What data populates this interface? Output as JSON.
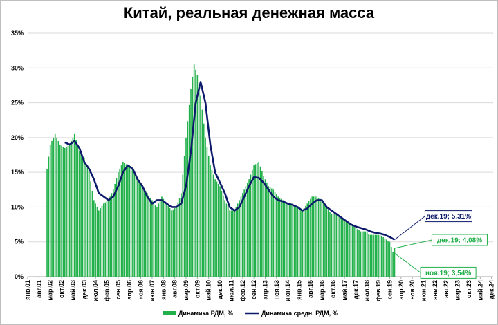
{
  "chart_data": {
    "type": "bar",
    "title": "Китай, реальная денежная масса",
    "xlabel": "",
    "ylabel": "",
    "ylim": [
      0,
      35
    ],
    "y_ticks": [
      "0%",
      "5%",
      "10%",
      "15%",
      "20%",
      "25%",
      "30%",
      "35%"
    ],
    "x_ticks": [
      "янв.01",
      "авг.01",
      "мар.02",
      "окт.02",
      "май.03",
      "дек.03",
      "июл.04",
      "фев.05",
      "сен.05",
      "апр.06",
      "ноя.06",
      "июн.07",
      "янв.08",
      "авг.08",
      "мар.09",
      "окт.09",
      "май.10",
      "дек.10",
      "июл.11",
      "фев.12",
      "сен.12",
      "апр.13",
      "ноя.13",
      "июн.14",
      "янв.15",
      "авг.15",
      "мар.16",
      "окт.16",
      "май.17",
      "дек.17",
      "июл.18",
      "фев.19",
      "сен.19",
      "апр.20",
      "ноя.20",
      "июн.21",
      "янв.22",
      "авг.22",
      "мар.23",
      "окт.23",
      "май.24",
      "дек.24"
    ],
    "grid": true,
    "legend_position": "bottom",
    "colors": {
      "bars": "#22b04a",
      "line": "#0d1a6b",
      "green_annotation": "#22b04a",
      "navy_annotation": "#0d1a6b"
    },
    "series": [
      {
        "name": "Динамика РДМ, %",
        "type": "bar",
        "points": [
          [
            "2002-01",
            15.5
          ],
          [
            "2002-03",
            19.0
          ],
          [
            "2002-06",
            20.5
          ],
          [
            "2002-09",
            19.0
          ],
          [
            "2002-12",
            18.5
          ],
          [
            "2003-03",
            19.0
          ],
          [
            "2003-06",
            20.5
          ],
          [
            "2003-09",
            18.0
          ],
          [
            "2003-12",
            17.0
          ],
          [
            "2004-03",
            15.0
          ],
          [
            "2004-06",
            11.0
          ],
          [
            "2004-09",
            9.5
          ],
          [
            "2004-12",
            10.5
          ],
          [
            "2005-03",
            11.0
          ],
          [
            "2005-06",
            12.5
          ],
          [
            "2005-09",
            15.0
          ],
          [
            "2005-12",
            16.5
          ],
          [
            "2006-03",
            16.0
          ],
          [
            "2006-06",
            15.5
          ],
          [
            "2006-09",
            14.0
          ],
          [
            "2006-12",
            13.0
          ],
          [
            "2007-03",
            12.0
          ],
          [
            "2007-06",
            11.0
          ],
          [
            "2007-09",
            10.0
          ],
          [
            "2007-12",
            11.5
          ],
          [
            "2008-03",
            10.5
          ],
          [
            "2008-06",
            9.5
          ],
          [
            "2008-09",
            10.0
          ],
          [
            "2008-12",
            12.0
          ],
          [
            "2009-03",
            20.0
          ],
          [
            "2009-06",
            27.0
          ],
          [
            "2009-08",
            30.5
          ],
          [
            "2009-10",
            29.0
          ],
          [
            "2009-12",
            26.0
          ],
          [
            "2010-03",
            20.0
          ],
          [
            "2010-06",
            16.0
          ],
          [
            "2010-09",
            14.0
          ],
          [
            "2010-12",
            13.0
          ],
          [
            "2011-03",
            11.0
          ],
          [
            "2011-06",
            9.5
          ],
          [
            "2011-09",
            9.5
          ],
          [
            "2011-12",
            11.0
          ],
          [
            "2012-03",
            12.5
          ],
          [
            "2012-06",
            14.0
          ],
          [
            "2012-09",
            16.0
          ],
          [
            "2012-12",
            16.5
          ],
          [
            "2013-03",
            14.5
          ],
          [
            "2013-06",
            13.0
          ],
          [
            "2013-09",
            12.5
          ],
          [
            "2013-12",
            11.5
          ],
          [
            "2014-03",
            11.0
          ],
          [
            "2014-06",
            10.5
          ],
          [
            "2014-09",
            10.5
          ],
          [
            "2014-12",
            10.0
          ],
          [
            "2015-03",
            9.5
          ],
          [
            "2015-06",
            10.5
          ],
          [
            "2015-09",
            11.5
          ],
          [
            "2015-12",
            11.5
          ],
          [
            "2016-03",
            11.0
          ],
          [
            "2016-06",
            10.0
          ],
          [
            "2016-09",
            9.0
          ],
          [
            "2016-12",
            9.0
          ],
          [
            "2017-03",
            8.5
          ],
          [
            "2017-06",
            8.0
          ],
          [
            "2017-09",
            7.5
          ],
          [
            "2017-12",
            7.0
          ],
          [
            "2018-03",
            6.5
          ],
          [
            "2018-06",
            6.5
          ],
          [
            "2018-09",
            6.0
          ],
          [
            "2018-12",
            6.0
          ],
          [
            "2019-03",
            6.0
          ],
          [
            "2019-06",
            5.5
          ],
          [
            "2019-09",
            5.0
          ],
          [
            "2019-11",
            3.54
          ],
          [
            "2019-12",
            4.08
          ]
        ]
      },
      {
        "name": "Динамика средн. РДМ, %",
        "type": "line",
        "points": [
          [
            "2002-12",
            19.3
          ],
          [
            "2003-03",
            19.0
          ],
          [
            "2003-06",
            19.5
          ],
          [
            "2003-09",
            18.5
          ],
          [
            "2003-12",
            16.5
          ],
          [
            "2004-03",
            15.5
          ],
          [
            "2004-06",
            14.0
          ],
          [
            "2004-09",
            12.0
          ],
          [
            "2004-12",
            11.5
          ],
          [
            "2005-03",
            11.0
          ],
          [
            "2005-06",
            11.5
          ],
          [
            "2005-09",
            13.0
          ],
          [
            "2005-12",
            15.0
          ],
          [
            "2006-03",
            16.0
          ],
          [
            "2006-06",
            15.5
          ],
          [
            "2006-09",
            14.0
          ],
          [
            "2006-12",
            13.0
          ],
          [
            "2007-03",
            11.5
          ],
          [
            "2007-06",
            10.5
          ],
          [
            "2007-09",
            11.0
          ],
          [
            "2007-12",
            11.0
          ],
          [
            "2008-03",
            10.5
          ],
          [
            "2008-06",
            10.0
          ],
          [
            "2008-09",
            10.0
          ],
          [
            "2008-12",
            10.5
          ],
          [
            "2009-03",
            13.0
          ],
          [
            "2009-06",
            18.0
          ],
          [
            "2009-09",
            25.0
          ],
          [
            "2009-12",
            28.0
          ],
          [
            "2010-03",
            25.0
          ],
          [
            "2010-06",
            19.0
          ],
          [
            "2010-09",
            15.0
          ],
          [
            "2010-12",
            13.5
          ],
          [
            "2011-03",
            12.0
          ],
          [
            "2011-06",
            10.0
          ],
          [
            "2011-09",
            9.5
          ],
          [
            "2011-12",
            10.0
          ],
          [
            "2012-03",
            11.5
          ],
          [
            "2012-06",
            13.0
          ],
          [
            "2012-09",
            14.3
          ],
          [
            "2012-12",
            14.2
          ],
          [
            "2013-03",
            13.5
          ],
          [
            "2013-06",
            12.5
          ],
          [
            "2013-09",
            11.5
          ],
          [
            "2013-12",
            11.0
          ],
          [
            "2014-03",
            10.8
          ],
          [
            "2014-06",
            10.5
          ],
          [
            "2014-09",
            10.3
          ],
          [
            "2014-12",
            10.0
          ],
          [
            "2015-03",
            9.5
          ],
          [
            "2015-06",
            9.8
          ],
          [
            "2015-09",
            10.5
          ],
          [
            "2015-12",
            11.0
          ],
          [
            "2016-03",
            11.0
          ],
          [
            "2016-06",
            10.0
          ],
          [
            "2016-09",
            9.5
          ],
          [
            "2016-12",
            9.0
          ],
          [
            "2017-03",
            8.5
          ],
          [
            "2017-06",
            8.0
          ],
          [
            "2017-09",
            7.5
          ],
          [
            "2017-12",
            7.2
          ],
          [
            "2018-03",
            7.0
          ],
          [
            "2018-06",
            6.8
          ],
          [
            "2018-09",
            6.5
          ],
          [
            "2018-12",
            6.3
          ],
          [
            "2019-03",
            6.2
          ],
          [
            "2019-06",
            6.0
          ],
          [
            "2019-09",
            5.7
          ],
          [
            "2019-12",
            5.31
          ]
        ]
      }
    ],
    "annotations": [
      {
        "text": "дек.19; 5,31%",
        "color": "#0d1a6b",
        "date": "2019-12",
        "value": 5.31
      },
      {
        "text": "дек.19; 4,08%",
        "color": "#22b04a",
        "date": "2019-12",
        "value": 4.08
      },
      {
        "text": "ноя.19; 3,54%",
        "color": "#22b04a",
        "date": "2019-11",
        "value": 3.54
      }
    ]
  }
}
